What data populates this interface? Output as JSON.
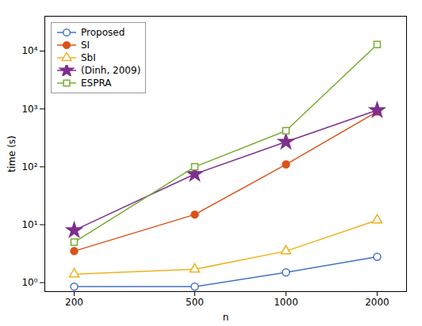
{
  "chart_data": {
    "type": "line",
    "x": [
      200,
      500,
      1000,
      2000
    ],
    "series": [
      {
        "name": "Proposed",
        "color": "#4472c4",
        "marker": "circle-open",
        "values": [
          0.85,
          0.85,
          1.5,
          2.8
        ]
      },
      {
        "name": "SI",
        "color": "#d95319",
        "marker": "circle",
        "values": [
          3.5,
          15,
          110,
          900
        ]
      },
      {
        "name": "SbI",
        "color": "#edb120",
        "marker": "triangle-open",
        "values": [
          1.4,
          1.7,
          3.5,
          12
        ]
      },
      {
        "name": "(Dinh, 2009)",
        "color": "#7e2f8e",
        "marker": "star",
        "values": [
          8.0,
          75,
          270,
          950
        ]
      },
      {
        "name": "ESPRA",
        "color": "#77ac30",
        "marker": "square-open",
        "values": [
          5.0,
          100,
          420,
          13000
        ]
      }
    ],
    "xlabel": "n",
    "ylabel": "time (s)",
    "xlim": [
      160,
      2500
    ],
    "ylim": [
      0.7,
      40000
    ],
    "xticks": [
      200,
      500,
      1000,
      2000
    ],
    "yticks": [
      {
        "value": 1,
        "label": "10⁰"
      },
      {
        "value": 10,
        "label": "10¹"
      },
      {
        "value": 100,
        "label": "10²"
      },
      {
        "value": 1000,
        "label": "10³"
      },
      {
        "value": 10000,
        "label": "10⁴"
      }
    ],
    "log": true,
    "grid": false,
    "legend": "upper left"
  }
}
